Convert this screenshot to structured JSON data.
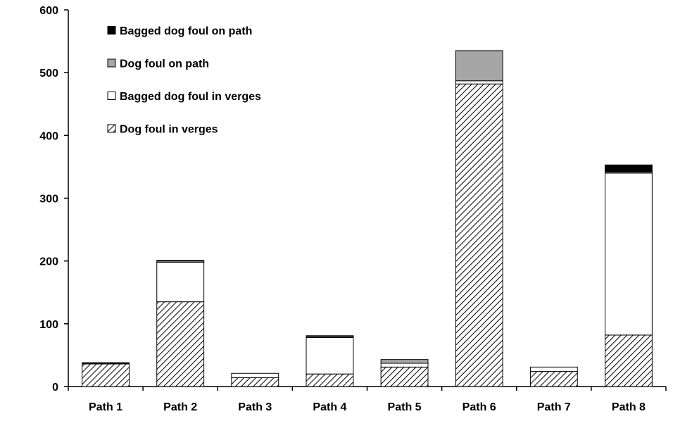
{
  "chart_data": {
    "type": "bar",
    "stacked": true,
    "categories": [
      "Path 1",
      "Path 2",
      "Path 3",
      "Path 4",
      "Path 5",
      "Path 6",
      "Path 7",
      "Path 8"
    ],
    "series": [
      {
        "name": "Dog foul in verges",
        "fill": "hatch",
        "values": [
          36,
          135,
          14,
          20,
          31,
          482,
          24,
          82
        ]
      },
      {
        "name": "Bagged dog foul in verges",
        "fill": "#ffffff",
        "values": [
          1,
          63,
          7,
          58,
          6,
          5,
          7,
          258
        ]
      },
      {
        "name": "Dog foul on path",
        "fill": "#a6a6a6",
        "values": [
          1,
          2,
          0,
          2,
          6,
          48,
          0,
          2
        ]
      },
      {
        "name": "Bagged dog foul on path",
        "fill": "#000000",
        "values": [
          0,
          1,
          0,
          1,
          0,
          0,
          0,
          11
        ]
      }
    ],
    "legend_order": [
      {
        "name": "Bagged dog foul on path",
        "fill": "#000000"
      },
      {
        "name": "Dog foul on path",
        "fill": "#a6a6a6"
      },
      {
        "name": "Bagged dog foul in verges",
        "fill": "#ffffff"
      },
      {
        "name": "Dog foul in verges",
        "fill": "hatch"
      }
    ],
    "yticks": [
      0,
      100,
      200,
      300,
      400,
      500,
      600
    ],
    "ylim": [
      0,
      600
    ],
    "title": "",
    "xlabel": "",
    "ylabel": "",
    "grid": false,
    "legend_position": "top-left"
  }
}
